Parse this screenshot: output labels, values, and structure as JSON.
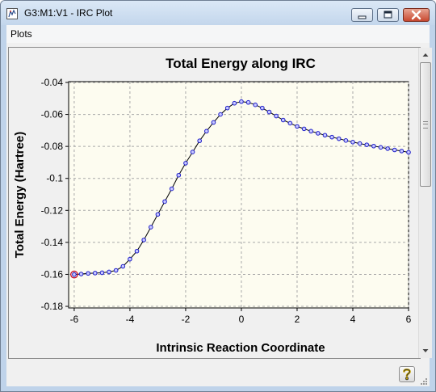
{
  "window": {
    "title": "G3:M1:V1 - IRC Plot",
    "controls": [
      "minimize-icon",
      "maximize-icon",
      "close-icon"
    ]
  },
  "menu": {
    "items": [
      {
        "label": "Plots"
      }
    ]
  },
  "colors": {
    "plot_background": "#fdfcf0",
    "curve": "#000000",
    "marker_stroke": "#1d1dc8",
    "marker_fill": "#c8c8ff",
    "highlight_marker": "#c8102e",
    "gridline": "#a8a8a8"
  },
  "chart_data": {
    "type": "line",
    "title": "Total Energy along IRC",
    "xlabel": "Intrinsic Reaction Coordinate",
    "ylabel": "Total Energy (Hartree)",
    "xlim": [
      -6.2,
      6.0
    ],
    "ylim": [
      -0.181,
      -0.0395
    ],
    "x_ticks": [
      -6,
      -4,
      -2,
      0,
      2,
      4,
      6
    ],
    "x_tick_labels": [
      "-6",
      "-4",
      "-2",
      "0",
      "2",
      "4",
      "6"
    ],
    "y_ticks": [
      -0.04,
      -0.06,
      -0.08,
      -0.1,
      -0.12,
      -0.14,
      -0.16,
      -0.18
    ],
    "y_tick_labels": [
      "-0.04",
      "-0.06",
      "-0.08",
      "-0.1",
      "-0.12",
      "-0.14",
      "-0.16",
      "-0.18"
    ],
    "grid": true,
    "legend": "none",
    "highlighted_point_index": 0,
    "series": [
      {
        "x": [
          -6.0,
          -5.75,
          -5.5,
          -5.25,
          -5.0,
          -4.75,
          -4.5,
          -4.25,
          -4.0,
          -3.75,
          -3.5,
          -3.25,
          -3.0,
          -2.75,
          -2.5,
          -2.25,
          -2.0,
          -1.75,
          -1.5,
          -1.25,
          -1.0,
          -0.75,
          -0.5,
          -0.25,
          0.0,
          0.25,
          0.5,
          0.75,
          1.0,
          1.25,
          1.5,
          1.75,
          2.0,
          2.25,
          2.5,
          2.75,
          3.0,
          3.25,
          3.5,
          3.75,
          4.0,
          4.25,
          4.5,
          4.75,
          5.0,
          5.25,
          5.5,
          5.75,
          6.0
        ],
        "y": [
          -0.1601,
          -0.1598,
          -0.1594,
          -0.1592,
          -0.159,
          -0.1585,
          -0.1575,
          -0.155,
          -0.1505,
          -0.1455,
          -0.1385,
          -0.1305,
          -0.1225,
          -0.1145,
          -0.1065,
          -0.098,
          -0.0905,
          -0.0835,
          -0.0765,
          -0.0705,
          -0.065,
          -0.06,
          -0.056,
          -0.053,
          -0.052,
          -0.0525,
          -0.054,
          -0.056,
          -0.0585,
          -0.061,
          -0.0635,
          -0.0655,
          -0.0675,
          -0.069,
          -0.0705,
          -0.0718,
          -0.073,
          -0.0742,
          -0.0752,
          -0.0763,
          -0.0773,
          -0.0782,
          -0.079,
          -0.0798,
          -0.0806,
          -0.0814,
          -0.0822,
          -0.0829,
          -0.0837
        ]
      }
    ]
  }
}
